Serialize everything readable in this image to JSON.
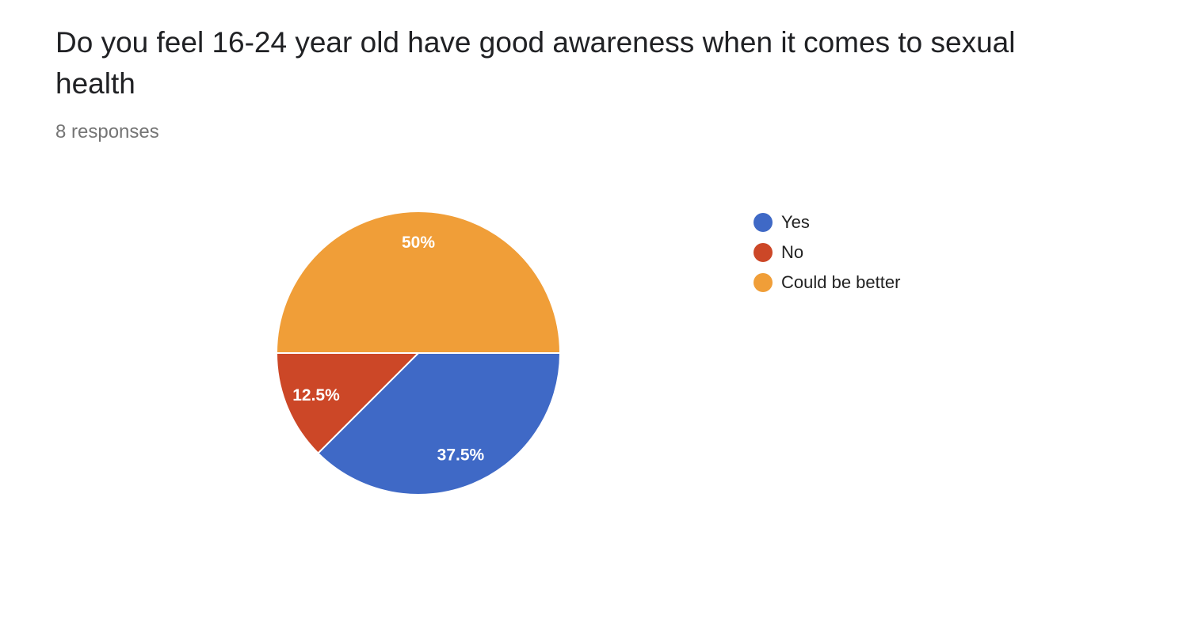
{
  "question": {
    "title": "Do you feel 16-24 year old have good awareness when it comes to sexual health",
    "responses": "8 responses"
  },
  "chart_data": {
    "type": "pie",
    "title": "Do you feel 16-24 year old have good awareness when it comes to sexual health",
    "slices": [
      {
        "label": "Yes",
        "value": 37.5,
        "value_label": "37.5%",
        "color": "#3f69c6"
      },
      {
        "label": "No",
        "value": 12.5,
        "value_label": "12.5%",
        "color": "#cc4727"
      },
      {
        "label": "Could be better",
        "value": 50,
        "value_label": "50%",
        "color": "#f09e38"
      }
    ],
    "legend_position": "right"
  }
}
